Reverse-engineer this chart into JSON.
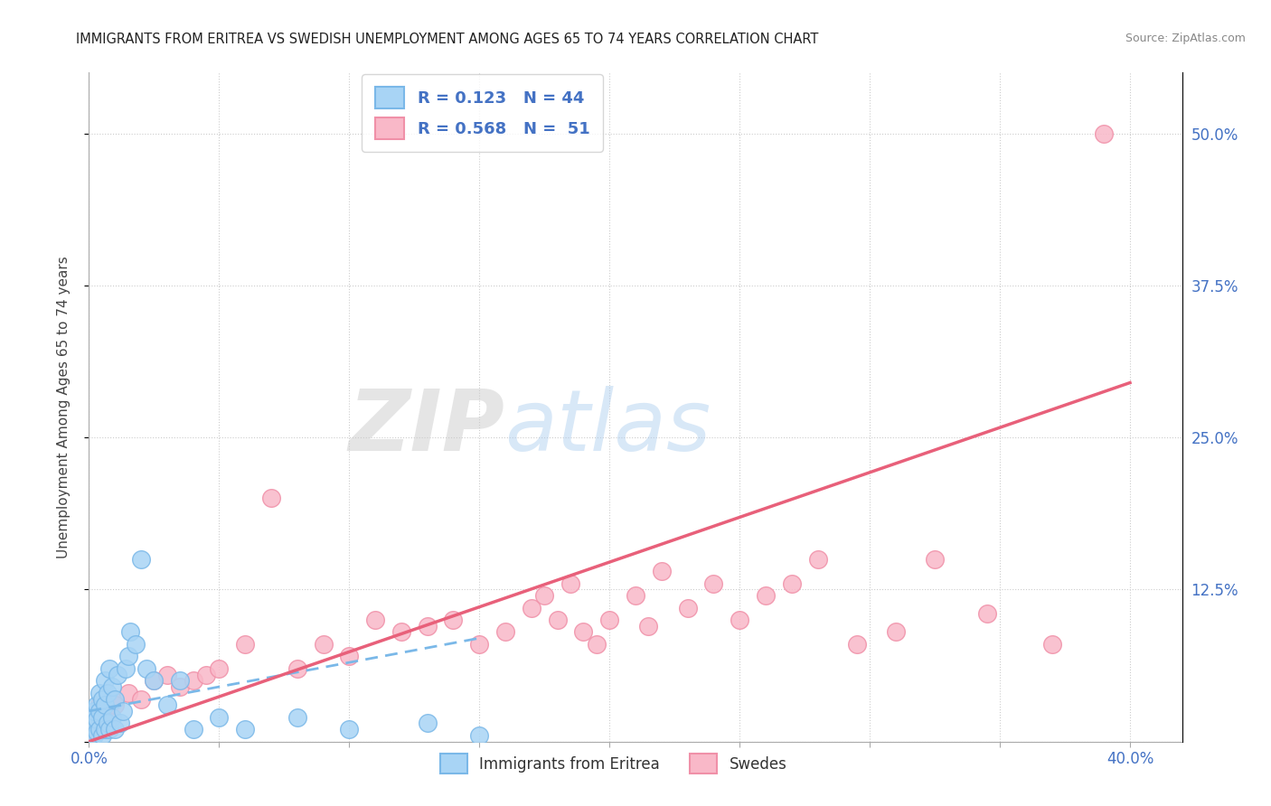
{
  "title": "IMMIGRANTS FROM ERITREA VS SWEDISH UNEMPLOYMENT AMONG AGES 65 TO 74 YEARS CORRELATION CHART",
  "source": "Source: ZipAtlas.com",
  "ylabel": "Unemployment Among Ages 65 to 74 years",
  "xlim": [
    0.0,
    0.42
  ],
  "ylim": [
    0.0,
    0.55
  ],
  "color_blue": "#A8D4F5",
  "color_blue_edge": "#7AB8E8",
  "color_pink": "#F9B8C8",
  "color_pink_edge": "#F090A8",
  "color_blue_line": "#7AB8E8",
  "color_pink_line": "#E8607A",
  "watermark_zip": "ZIP",
  "watermark_atlas": "atlas",
  "blue_scatter_x": [
    0.001,
    0.001,
    0.002,
    0.002,
    0.002,
    0.003,
    0.003,
    0.003,
    0.004,
    0.004,
    0.004,
    0.005,
    0.005,
    0.005,
    0.006,
    0.006,
    0.006,
    0.007,
    0.007,
    0.008,
    0.008,
    0.009,
    0.009,
    0.01,
    0.01,
    0.011,
    0.012,
    0.013,
    0.014,
    0.015,
    0.016,
    0.018,
    0.02,
    0.022,
    0.025,
    0.03,
    0.035,
    0.04,
    0.05,
    0.06,
    0.08,
    0.1,
    0.13,
    0.15
  ],
  "blue_scatter_y": [
    0.01,
    0.02,
    0.005,
    0.015,
    0.025,
    0.008,
    0.018,
    0.03,
    0.01,
    0.025,
    0.04,
    0.005,
    0.02,
    0.035,
    0.01,
    0.03,
    0.05,
    0.015,
    0.04,
    0.01,
    0.06,
    0.02,
    0.045,
    0.01,
    0.035,
    0.055,
    0.015,
    0.025,
    0.06,
    0.07,
    0.09,
    0.08,
    0.15,
    0.06,
    0.05,
    0.03,
    0.05,
    0.01,
    0.02,
    0.01,
    0.02,
    0.01,
    0.015,
    0.005
  ],
  "pink_scatter_x": [
    0.001,
    0.002,
    0.003,
    0.004,
    0.005,
    0.006,
    0.007,
    0.008,
    0.009,
    0.01,
    0.015,
    0.02,
    0.025,
    0.03,
    0.035,
    0.04,
    0.045,
    0.05,
    0.06,
    0.07,
    0.08,
    0.09,
    0.1,
    0.11,
    0.12,
    0.13,
    0.14,
    0.15,
    0.16,
    0.17,
    0.175,
    0.18,
    0.185,
    0.19,
    0.195,
    0.2,
    0.21,
    0.215,
    0.22,
    0.23,
    0.24,
    0.25,
    0.26,
    0.27,
    0.28,
    0.295,
    0.31,
    0.325,
    0.345,
    0.37,
    0.39
  ],
  "pink_scatter_y": [
    0.01,
    0.02,
    0.025,
    0.03,
    0.025,
    0.02,
    0.03,
    0.025,
    0.035,
    0.03,
    0.04,
    0.035,
    0.05,
    0.055,
    0.045,
    0.05,
    0.055,
    0.06,
    0.08,
    0.2,
    0.06,
    0.08,
    0.07,
    0.1,
    0.09,
    0.095,
    0.1,
    0.08,
    0.09,
    0.11,
    0.12,
    0.1,
    0.13,
    0.09,
    0.08,
    0.1,
    0.12,
    0.095,
    0.14,
    0.11,
    0.13,
    0.1,
    0.12,
    0.13,
    0.15,
    0.08,
    0.09,
    0.15,
    0.105,
    0.08,
    0.5
  ],
  "blue_line_x": [
    0.0,
    0.15
  ],
  "blue_line_y": [
    0.025,
    0.085
  ],
  "pink_line_x": [
    0.0,
    0.4
  ],
  "pink_line_y": [
    0.0,
    0.295
  ]
}
